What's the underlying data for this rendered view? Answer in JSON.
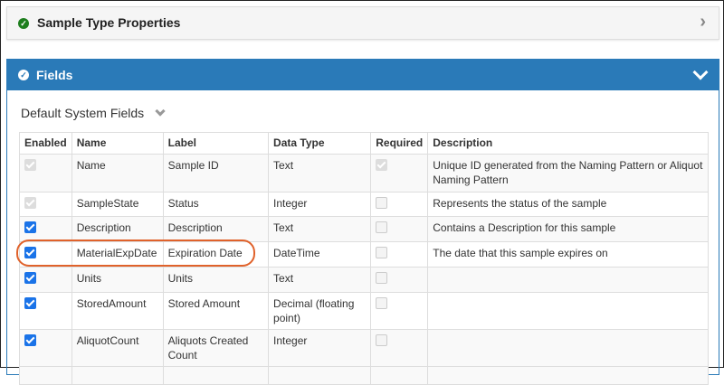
{
  "panels": {
    "properties": {
      "title": "Sample Type Properties",
      "status_color": "#1e7e1e"
    },
    "fields": {
      "title": "Fields",
      "header_color": "#2a7ab8"
    }
  },
  "section": {
    "title": "Default System Fields"
  },
  "table": {
    "columns": [
      "Enabled",
      "Name",
      "Label",
      "Data Type",
      "Required",
      "Description"
    ],
    "rows": [
      {
        "enabled": "disabled-checked",
        "name": "Name",
        "label": "Sample ID",
        "type": "Text",
        "required": "disabled-checked",
        "description": "Unique ID generated from the Naming Pattern or Aliquot Naming Pattern"
      },
      {
        "enabled": "disabled-checked",
        "name": "SampleState",
        "label": "Status",
        "type": "Integer",
        "required": "unchecked",
        "description": "Represents the status of the sample"
      },
      {
        "enabled": "checked",
        "name": "Description",
        "label": "Description",
        "type": "Text",
        "required": "unchecked",
        "description": "Contains a Description for this sample"
      },
      {
        "enabled": "checked",
        "name": "MaterialExpDate",
        "label": "Expiration Date",
        "type": "DateTime",
        "required": "unchecked",
        "description": "The date that this sample expires on",
        "highlighted": true
      },
      {
        "enabled": "checked",
        "name": "Units",
        "label": "Units",
        "type": "Text",
        "required": "unchecked",
        "description": ""
      },
      {
        "enabled": "checked",
        "name": "StoredAmount",
        "label": "Stored Amount",
        "type": "Decimal (floating point)",
        "required": "unchecked",
        "description": ""
      },
      {
        "enabled": "checked",
        "name": "AliquotCount",
        "label": "Aliquots Created Count",
        "type": "Integer",
        "required": "unchecked",
        "description": ""
      }
    ]
  }
}
